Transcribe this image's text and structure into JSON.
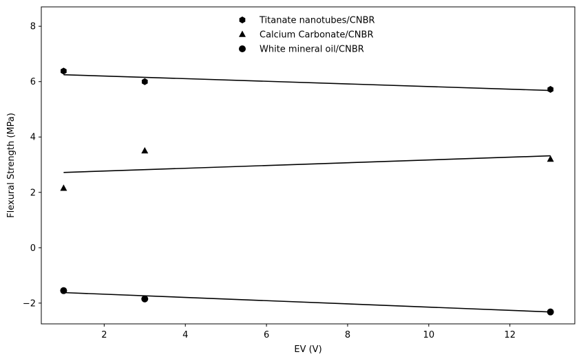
{
  "chart_data": {
    "type": "scatter",
    "title": "",
    "xlabel": "EV (V)",
    "ylabel": "Flexural Strength (MPa)",
    "xlim": [
      0.45,
      13.6
    ],
    "ylim": [
      -2.75,
      8.7
    ],
    "xticks": [
      2,
      4,
      6,
      8,
      10,
      12
    ],
    "yticks": [
      -2,
      0,
      2,
      4,
      6,
      8
    ],
    "grid": false,
    "legend_position": "top-center",
    "series": [
      {
        "name": "Titanate nanotubes/CNBR",
        "marker": "hexagon",
        "color": "#000000",
        "x": [
          1,
          3,
          13
        ],
        "y": [
          6.38,
          6.0,
          5.72
        ],
        "trend": {
          "x": [
            1,
            13
          ],
          "y": [
            6.25,
            5.68
          ]
        }
      },
      {
        "name": "Calcium Carbonate/CNBR",
        "marker": "triangle",
        "color": "#000000",
        "x": [
          1,
          3,
          13
        ],
        "y": [
          2.15,
          3.5,
          3.2
        ],
        "trend": {
          "x": [
            1,
            13
          ],
          "y": [
            2.72,
            3.32
          ]
        }
      },
      {
        "name": "White mineral oil/CNBR",
        "marker": "circle",
        "color": "#000000",
        "x": [
          1,
          3,
          13
        ],
        "y": [
          -1.55,
          -1.85,
          -2.32
        ],
        "trend": {
          "x": [
            1,
            13
          ],
          "y": [
            -1.62,
            -2.32
          ]
        }
      }
    ]
  }
}
